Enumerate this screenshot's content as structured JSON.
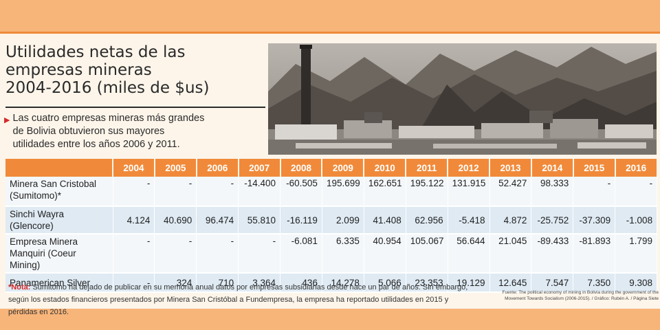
{
  "title_lines": [
    "Utilidades netas de las",
    "empresas mineras",
    "2004-2016 (miles de $us)"
  ],
  "subtitle": "Las cuatro empresas mineras más grandes de Bolivia obtuvieron sus mayores utilidades entre los años 2006 y 2011.",
  "subtitle_lines": [
    "Las cuatro empresas mineras más grandes",
    "de Bolivia obtuvieron sus mayores",
    "utilidades entre los años 2006 y 2011."
  ],
  "table": {
    "years": [
      "2004",
      "2005",
      "2006",
      "2007",
      "2008",
      "2009",
      "2010",
      "2011",
      "2012",
      "2013",
      "2014",
      "2015",
      "2016"
    ],
    "rows": [
      {
        "name_lines": [
          "Minera San Cristobal",
          "(Sumitomo)*"
        ],
        "values": [
          "-",
          "-",
          "-",
          "-14.400",
          "-60.505",
          "195.699",
          "162.651",
          "195.122",
          "131.915",
          "52.427",
          "98.333",
          "-",
          "-"
        ]
      },
      {
        "name_lines": [
          "Sinchi Wayra (Glencore)"
        ],
        "values": [
          "4.124",
          "40.690",
          "96.474",
          "55.810",
          "-16.119",
          "2.099",
          "41.408",
          "62.956",
          "-5.418",
          "4.872",
          "-25.752",
          "-37.309",
          "-1.008"
        ]
      },
      {
        "name_lines": [
          "Empresa Minera",
          "Manquiri (Coeur Mining)"
        ],
        "values": [
          "-",
          "-",
          "-",
          "-",
          "-6.081",
          "6.335",
          "40.954",
          "105.067",
          "56.644",
          "21.045",
          "-89.433",
          "-81.893",
          "1.799"
        ]
      },
      {
        "name_lines": [
          "Panamerican Silver"
        ],
        "values": [
          "-",
          "324",
          "710",
          "3.364",
          "436",
          "14.278",
          "5.066",
          "23.353",
          "19.129",
          "12.645",
          "7.547",
          "7.350",
          "9.308"
        ]
      }
    ]
  },
  "note": {
    "label": "*Nota:",
    "text": "Sumitomo ha dejado de publicar en su memoria anual datos por empresas subsidiarias desde hace un par de años. Sin embargo, según los estados financieros presentados por Minera San Cristóbal a Fundempresa, la empresa ha reportado utilidades en 2015  y pérdidas en 2016."
  },
  "source": "Fuente: The political economy of mining in Bolivia during the government of the Movement Towards Socialism (2006-2015).  /  Gráfico: Rubén A. / Página Siete",
  "colors": {
    "accent": "#f08a3a",
    "page_bg": "#f8b57a",
    "card_bg": "#fdf5ea",
    "row_light": "#f3f7fa",
    "row_blue": "#dfeaf3",
    "note_red": "#d42a2a"
  }
}
